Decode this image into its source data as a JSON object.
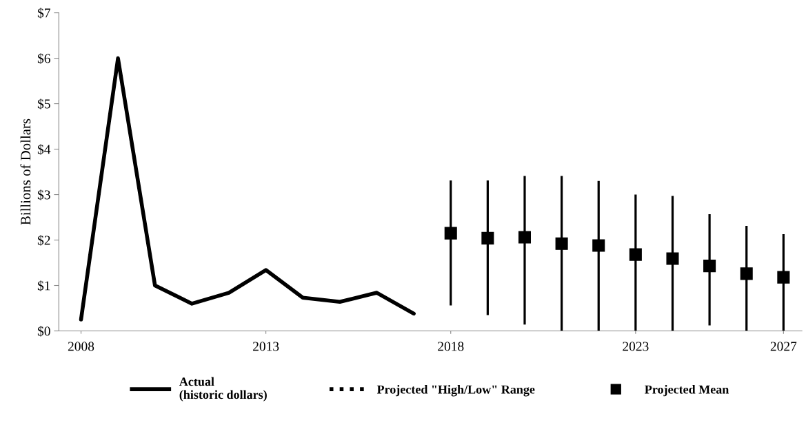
{
  "chart_data": {
    "type": "line",
    "ylabel": "Billions of Dollars",
    "xlim": [
      2007.4,
      2027.5
    ],
    "xticks": [
      2008,
      2013,
      2018,
      2023,
      2027
    ],
    "ylim": [
      0,
      7
    ],
    "yticks": [
      {
        "value": 0,
        "label": "$0"
      },
      {
        "value": 1,
        "label": "$1"
      },
      {
        "value": 2,
        "label": "$2"
      },
      {
        "value": 3,
        "label": "$3"
      },
      {
        "value": 4,
        "label": "$4"
      },
      {
        "value": 5,
        "label": "$5"
      },
      {
        "value": 6,
        "label": "$6"
      },
      {
        "value": 7,
        "label": "$7"
      }
    ],
    "grid": false,
    "legend": "bottom",
    "series": [
      {
        "name": "Actual\n(historic dollars)",
        "color": "#000000",
        "line_style": "solid",
        "marker": "none",
        "x": [
          2008,
          2009,
          2010,
          2011,
          2012,
          2013,
          2014,
          2015,
          2016,
          2017
        ],
        "values": [
          0.25,
          6.0,
          1.0,
          0.6,
          0.84,
          1.34,
          0.73,
          0.64,
          0.84,
          0.38
        ]
      },
      {
        "name": "Projected \"High/Low\" Range",
        "type": "bar",
        "color": "#000000",
        "line_style": "dotted",
        "x": [
          2018,
          2019,
          2020,
          2021,
          2022,
          2023,
          2024,
          2025,
          2026,
          2027
        ],
        "base": [
          0.56,
          0.35,
          0.14,
          0,
          0,
          0,
          0,
          0.12,
          0,
          0
        ],
        "values": [
          2.75,
          2.96,
          3.27,
          3.41,
          3.3,
          3.0,
          2.97,
          2.45,
          2.31,
          2.13
        ]
      },
      {
        "name": "Projected Mean",
        "type": "scatter",
        "color": "#000000",
        "marker": "square",
        "x": [
          2018,
          2019,
          2020,
          2021,
          2022,
          2023,
          2024,
          2025,
          2026,
          2027
        ],
        "values": [
          2.15,
          2.04,
          2.06,
          1.92,
          1.88,
          1.68,
          1.59,
          1.43,
          1.26,
          1.18
        ]
      }
    ]
  }
}
